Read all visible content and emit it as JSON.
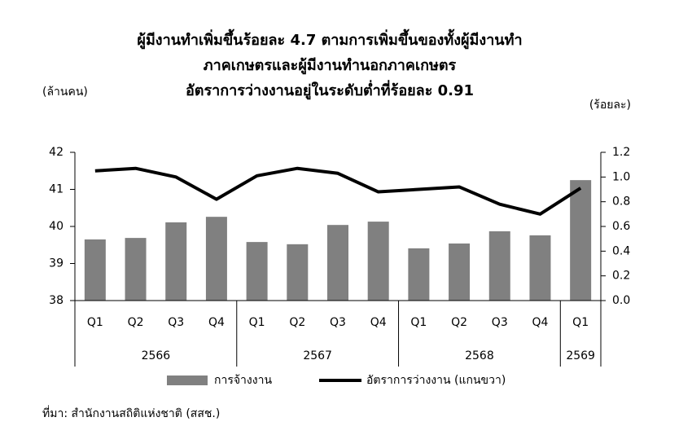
{
  "chart_data": {
    "type": "bar-line",
    "title": [
      "ผู้มีงานทำเพิ่มขึ้นร้อยละ 4.7 ตามการเพิ่มขึ้นของทั้งผู้มีงานทำ",
      "ภาคเกษตรและผู้มีงานทำนอกภาคเกษตร",
      "อัตราการว่างงานอยู่ในระดับต่ำที่ร้อยละ 0.91"
    ],
    "y_label": "(ล้านคน)",
    "y2_label": "(ร้อยละ)",
    "groups": [
      {
        "name": "2566",
        "categories": [
          "Q1",
          "Q2",
          "Q3",
          "Q4"
        ]
      },
      {
        "name": "2567",
        "categories": [
          "Q1",
          "Q2",
          "Q3",
          "Q4"
        ]
      },
      {
        "name": "2568",
        "categories": [
          "Q1",
          "Q2",
          "Q3",
          "Q4"
        ]
      },
      {
        "name": "2569",
        "categories": [
          "Q1"
        ]
      }
    ],
    "series": [
      {
        "name": "การจ้างงาน",
        "type": "bar",
        "color": "#808080",
        "values": [
          39.65,
          39.69,
          40.11,
          40.26,
          39.58,
          39.52,
          40.04,
          40.13,
          39.41,
          39.54,
          39.87,
          39.76,
          41.25
        ]
      },
      {
        "name": "อัตราการว่างงาน (แกนขวา)",
        "type": "line",
        "axis": "y2",
        "color": "#000000",
        "values": [
          1.05,
          1.07,
          1.0,
          0.82,
          1.01,
          1.07,
          1.03,
          0.88,
          0.9,
          0.92,
          0.78,
          0.7,
          0.91
        ]
      }
    ],
    "ylim": [
      38,
      42
    ],
    "yticks": [
      38,
      39,
      40,
      41,
      42
    ],
    "y2lim": [
      0,
      1.2
    ],
    "y2ticks": [
      {
        "value": 0,
        "label": "0.0"
      },
      0.2,
      0.4,
      0.6,
      0.8,
      {
        "value": 1,
        "label": "1.0"
      },
      1.2
    ],
    "grid": false,
    "source": "ที่มา: สำนักงานสถิติแห่งชาติ (สสช.)"
  }
}
